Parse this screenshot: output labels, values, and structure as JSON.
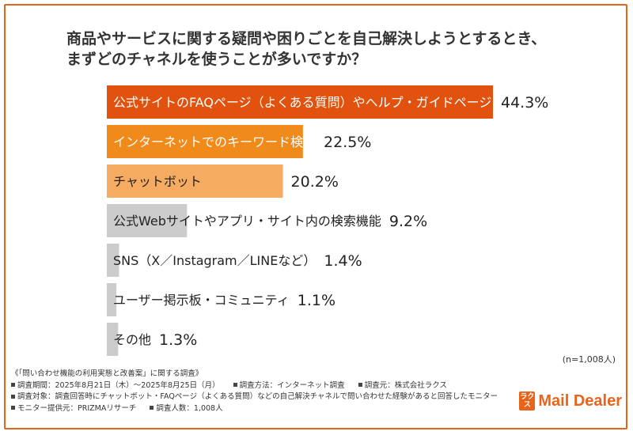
{
  "header": {
    "title_line1": "商品やサービスに関する疑問や困りごとを自己解決しようとするとき、",
    "title_line2": "まずどのチャネルを使うことが多いですか？"
  },
  "chart_data": {
    "type": "bar",
    "orientation": "horizontal",
    "unit": "%",
    "categories": [
      "公式サイトのFAQページ（よくある質問）やヘルプ・ガイドページ",
      "インターネットでのキーワード検索",
      "チャットボット",
      "公式Webサイトやアプリ・サイト内の検索機能",
      "SNS（X／Instagram／LINEなど）",
      "ユーザー掲示板・コミュニティ",
      "その他"
    ],
    "values": [
      44.3,
      22.5,
      20.2,
      9.2,
      1.4,
      1.1,
      1.3
    ],
    "value_labels": [
      "44.3%",
      "22.5%",
      "20.2%",
      "9.2%",
      "1.4%",
      "1.1%",
      "1.3%"
    ],
    "colors": [
      "#e0520e",
      "#f08a1a",
      "#f5ac60",
      "#cccccc",
      "#cccccc",
      "#cccccc",
      "#cccccc"
    ],
    "xlim": [
      0,
      44.3
    ]
  },
  "notes": {
    "n": "(n=1,008人)",
    "survey_name": "《「問い合わせ機能の利用実態と改善案」に関する調査》",
    "period": "調査期間：2025年8月21日（木）〜2025年8月25日（月）",
    "method": "調査方法：インターネット調査",
    "source": "調査元：株式会社ラクス",
    "target": "調査対象：調査回答時にチャットボット・FAQページ（よくある質問）などの自己解決チャネルで問い合わせた経験があると回答したモニター",
    "provider": "モニター提供元：PRIZMAリサーチ",
    "count": "調査人数：1,008人"
  },
  "logo": {
    "mark_text": "ラクス",
    "word": "Mail Dealer",
    "color": "#e8641b"
  }
}
